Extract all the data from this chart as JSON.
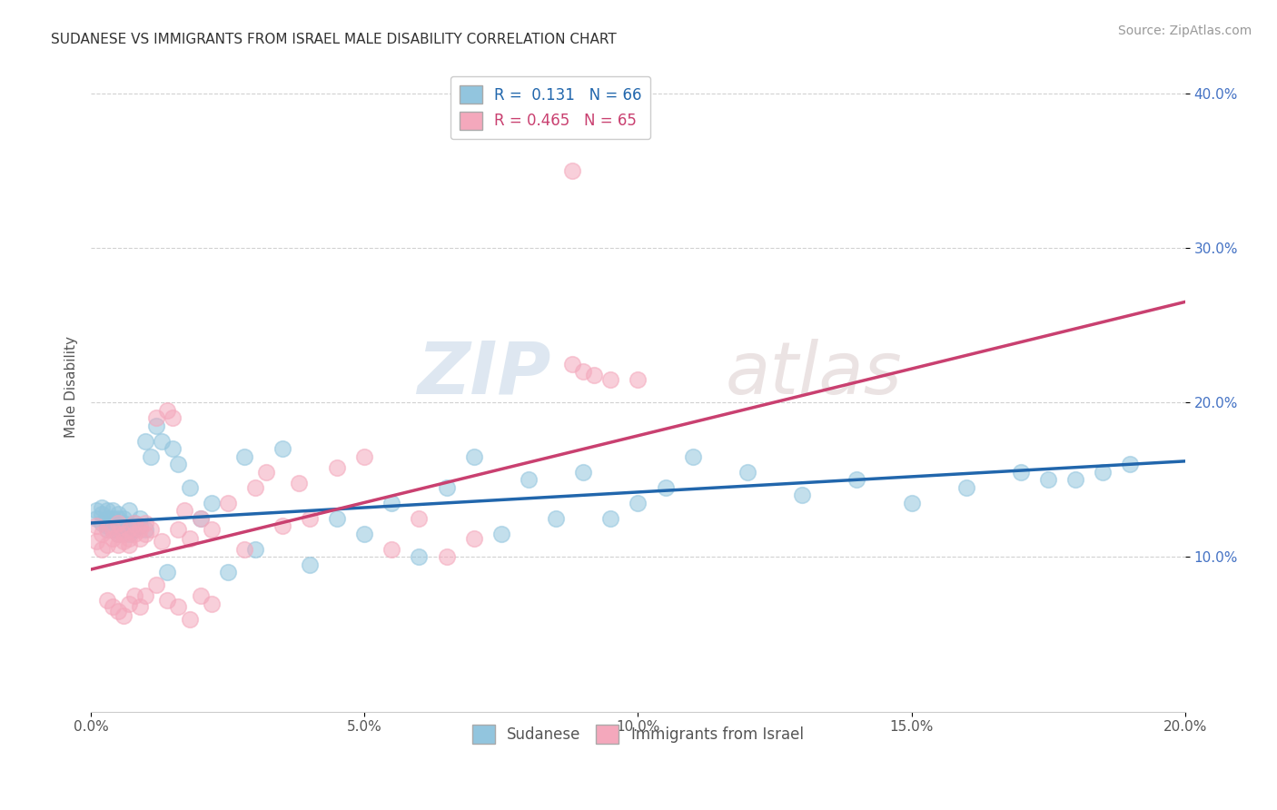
{
  "title": "SUDANESE VS IMMIGRANTS FROM ISRAEL MALE DISABILITY CORRELATION CHART",
  "source": "Source: ZipAtlas.com",
  "xlabel": "",
  "ylabel": "Male Disability",
  "xlim": [
    0.0,
    0.2
  ],
  "ylim": [
    0.0,
    0.42
  ],
  "xticks": [
    0.0,
    0.05,
    0.1,
    0.15,
    0.2
  ],
  "yticks": [
    0.1,
    0.2,
    0.3,
    0.4
  ],
  "xtick_labels": [
    "0.0%",
    "5.0%",
    "10.0%",
    "15.0%",
    "20.0%"
  ],
  "ytick_labels": [
    "10.0%",
    "20.0%",
    "30.0%",
    "40.0%"
  ],
  "blue_color": "#92C5DE",
  "pink_color": "#F4A8BC",
  "blue_line_color": "#2166AC",
  "pink_line_color": "#C94070",
  "blue_R": 0.131,
  "blue_N": 66,
  "pink_R": 0.465,
  "pink_N": 65,
  "legend_label_blue": "Sudanese",
  "legend_label_pink": "Immigrants from Israel",
  "watermark_zip": "ZIP",
  "watermark_atlas": "atlas",
  "background_color": "#ffffff",
  "blue_x": [
    0.001,
    0.001,
    0.002,
    0.002,
    0.002,
    0.003,
    0.003,
    0.003,
    0.003,
    0.004,
    0.004,
    0.004,
    0.005,
    0.005,
    0.005,
    0.005,
    0.006,
    0.006,
    0.006,
    0.007,
    0.007,
    0.007,
    0.008,
    0.008,
    0.009,
    0.009,
    0.01,
    0.01,
    0.011,
    0.012,
    0.013,
    0.014,
    0.015,
    0.016,
    0.018,
    0.02,
    0.022,
    0.025,
    0.028,
    0.03,
    0.035,
    0.04,
    0.045,
    0.05,
    0.055,
    0.06,
    0.065,
    0.07,
    0.075,
    0.08,
    0.085,
    0.09,
    0.095,
    0.1,
    0.105,
    0.11,
    0.12,
    0.13,
    0.14,
    0.15,
    0.16,
    0.17,
    0.175,
    0.18,
    0.185,
    0.19
  ],
  "blue_y": [
    0.13,
    0.125,
    0.128,
    0.122,
    0.132,
    0.118,
    0.125,
    0.12,
    0.13,
    0.125,
    0.118,
    0.13,
    0.12,
    0.125,
    0.115,
    0.128,
    0.122,
    0.118,
    0.125,
    0.12,
    0.13,
    0.115,
    0.122,
    0.118,
    0.125,
    0.12,
    0.175,
    0.118,
    0.165,
    0.185,
    0.175,
    0.09,
    0.17,
    0.16,
    0.145,
    0.125,
    0.135,
    0.09,
    0.165,
    0.105,
    0.17,
    0.095,
    0.125,
    0.115,
    0.135,
    0.1,
    0.145,
    0.165,
    0.115,
    0.15,
    0.125,
    0.155,
    0.125,
    0.135,
    0.145,
    0.165,
    0.155,
    0.14,
    0.15,
    0.135,
    0.145,
    0.155,
    0.15,
    0.15,
    0.155,
    0.16
  ],
  "pink_x": [
    0.001,
    0.001,
    0.002,
    0.002,
    0.003,
    0.003,
    0.004,
    0.004,
    0.005,
    0.005,
    0.005,
    0.006,
    0.006,
    0.007,
    0.007,
    0.007,
    0.008,
    0.008,
    0.009,
    0.009,
    0.01,
    0.01,
    0.011,
    0.012,
    0.013,
    0.014,
    0.015,
    0.016,
    0.017,
    0.018,
    0.02,
    0.022,
    0.025,
    0.028,
    0.03,
    0.032,
    0.035,
    0.038,
    0.04,
    0.045,
    0.05,
    0.055,
    0.06,
    0.065,
    0.07,
    0.088,
    0.09,
    0.092,
    0.095,
    0.1,
    0.003,
    0.004,
    0.005,
    0.006,
    0.007,
    0.008,
    0.009,
    0.01,
    0.012,
    0.014,
    0.016,
    0.018,
    0.02,
    0.022,
    0.088
  ],
  "pink_y": [
    0.12,
    0.11,
    0.115,
    0.105,
    0.118,
    0.108,
    0.112,
    0.118,
    0.115,
    0.108,
    0.122,
    0.115,
    0.11,
    0.108,
    0.118,
    0.112,
    0.115,
    0.122,
    0.112,
    0.118,
    0.115,
    0.122,
    0.118,
    0.19,
    0.11,
    0.195,
    0.19,
    0.118,
    0.13,
    0.112,
    0.125,
    0.118,
    0.135,
    0.105,
    0.145,
    0.155,
    0.12,
    0.148,
    0.125,
    0.158,
    0.165,
    0.105,
    0.125,
    0.1,
    0.112,
    0.225,
    0.22,
    0.218,
    0.215,
    0.215,
    0.072,
    0.068,
    0.065,
    0.062,
    0.07,
    0.075,
    0.068,
    0.075,
    0.082,
    0.072,
    0.068,
    0.06,
    0.075,
    0.07,
    0.35
  ],
  "pink_trend_x0": 0.0,
  "pink_trend_y0": 0.092,
  "pink_trend_x1": 0.2,
  "pink_trend_y1": 0.265,
  "blue_trend_x0": 0.0,
  "blue_trend_y0": 0.122,
  "blue_trend_x1": 0.2,
  "blue_trend_y1": 0.162
}
